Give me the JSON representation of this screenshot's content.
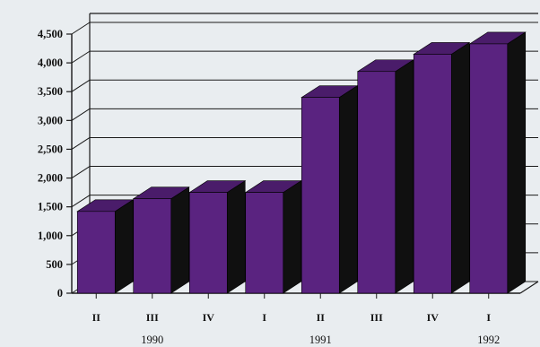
{
  "chart_data": {
    "type": "bar",
    "title": "",
    "xlabel": "",
    "ylabel": "",
    "categories": [
      "II",
      "III",
      "IV",
      "I",
      "II",
      "III",
      "IV",
      "I"
    ],
    "group_labels": [
      {
        "label": "1990",
        "under_category_index": 1
      },
      {
        "label": "1991",
        "under_category_index": 4
      },
      {
        "label": "1992",
        "under_category_index": 7
      }
    ],
    "values": [
      1420,
      1640,
      1750,
      1750,
      3400,
      3850,
      4150,
      4330
    ],
    "ylim": [
      0,
      4500
    ],
    "yticks": [
      0,
      500,
      1000,
      1500,
      2000,
      2500,
      3000,
      3500,
      4000,
      4500
    ],
    "ytick_labels": [
      "0",
      "500",
      "1,000",
      "1,500",
      "2,000",
      "2,500",
      "3,000",
      "3,500",
      "4,000",
      "4,500"
    ],
    "grid": true,
    "three_d": true,
    "legend": "none",
    "colors": {
      "bar_front": "#5a2380",
      "bar_top": "#4a1c6a",
      "bar_side": "#101010",
      "background": "#e9edf0",
      "grid": "#1a1a1a"
    }
  }
}
